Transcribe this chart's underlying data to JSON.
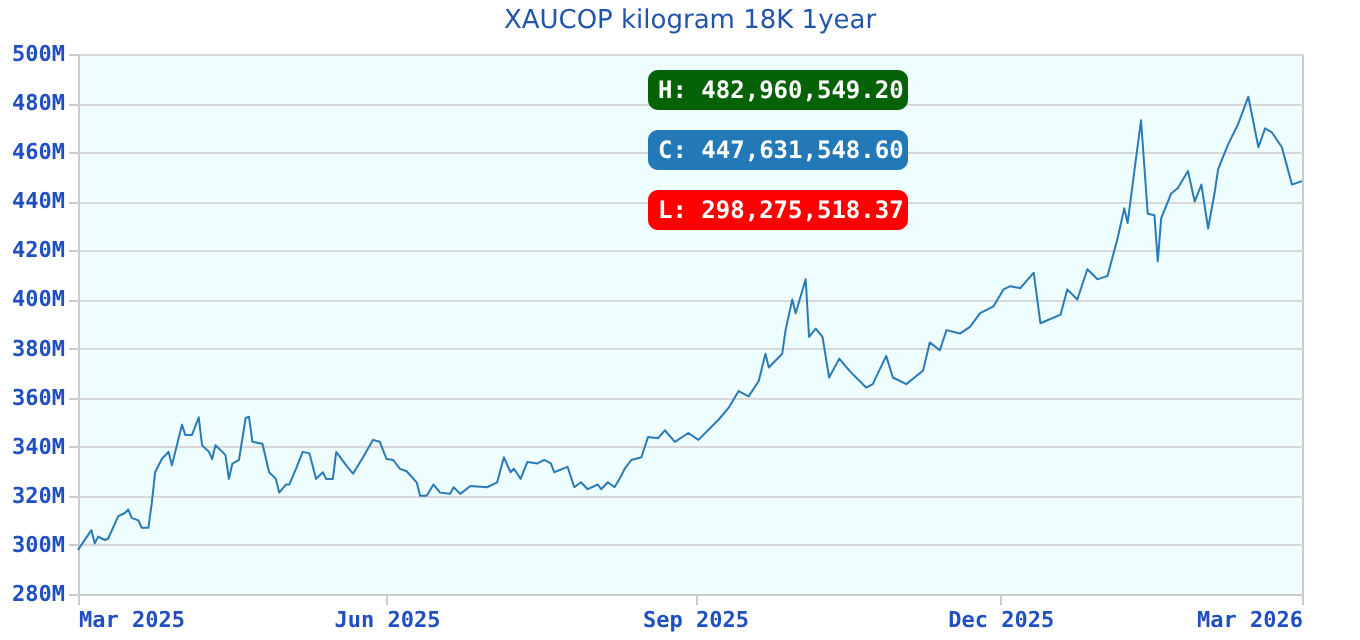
{
  "chart_data": {
    "type": "line",
    "title": "XAUCOP kilogram 18K 1year",
    "annotations": [
      "H: 482,960,549.20",
      "C: 447,631,548.60",
      "L: 298,275,518.37"
    ],
    "x": [
      "2025-03-01",
      "2025-03-05",
      "2025-03-06",
      "2025-03-07",
      "2025-03-09",
      "2025-03-10",
      "2025-03-13",
      "2025-03-15",
      "2025-03-16",
      "2025-03-17",
      "2025-03-19",
      "2025-03-20",
      "2025-03-22",
      "2025-03-23",
      "2025-03-24",
      "2025-03-26",
      "2025-03-28",
      "2025-03-29",
      "2025-04-01",
      "2025-04-02",
      "2025-04-04",
      "2025-04-06",
      "2025-04-07",
      "2025-04-09",
      "2025-04-10",
      "2025-04-11",
      "2025-04-13",
      "2025-04-14",
      "2025-04-15",
      "2025-04-16",
      "2025-04-18",
      "2025-04-20",
      "2025-04-21",
      "2025-04-22",
      "2025-04-25",
      "2025-04-27",
      "2025-04-29",
      "2025-04-30",
      "2025-05-02",
      "2025-05-03",
      "2025-05-05",
      "2025-05-07",
      "2025-05-09",
      "2025-05-11",
      "2025-05-13",
      "2025-05-14",
      "2025-05-16",
      "2025-05-17",
      "2025-05-20",
      "2025-05-22",
      "2025-05-25",
      "2025-05-28",
      "2025-05-30",
      "2025-06-01",
      "2025-06-03",
      "2025-06-05",
      "2025-06-07",
      "2025-06-10",
      "2025-06-11",
      "2025-06-13",
      "2025-06-15",
      "2025-06-17",
      "2025-06-20",
      "2025-06-21",
      "2025-06-23",
      "2025-06-26",
      "2025-07-01",
      "2025-07-04",
      "2025-07-06",
      "2025-07-08",
      "2025-07-09",
      "2025-07-11",
      "2025-07-13",
      "2025-07-16",
      "2025-07-18",
      "2025-07-20",
      "2025-07-21",
      "2025-07-25",
      "2025-07-27",
      "2025-07-29",
      "2025-07-31",
      "2025-08-03",
      "2025-08-04",
      "2025-08-06",
      "2025-08-08",
      "2025-08-10",
      "2025-08-11",
      "2025-08-13",
      "2025-08-16",
      "2025-08-18",
      "2025-08-21",
      "2025-08-23",
      "2025-08-26",
      "2025-08-30",
      "2025-09-02",
      "2025-09-08",
      "2025-09-11",
      "2025-09-14",
      "2025-09-17",
      "2025-09-20",
      "2025-09-22",
      "2025-09-23",
      "2025-09-27",
      "2025-09-28",
      "2025-09-30",
      "2025-10-01",
      "2025-10-04",
      "2025-10-05",
      "2025-10-07",
      "2025-10-09",
      "2025-10-11",
      "2025-10-14",
      "2025-10-17",
      "2025-10-22",
      "2025-10-24",
      "2025-10-28",
      "2025-10-30",
      "2025-11-03",
      "2025-11-06",
      "2025-11-08",
      "2025-11-10",
      "2025-11-13",
      "2025-11-15",
      "2025-11-19",
      "2025-11-22",
      "2025-11-25",
      "2025-11-29",
      "2025-12-02",
      "2025-12-04",
      "2025-12-07",
      "2025-12-11",
      "2025-12-13",
      "2025-12-19",
      "2025-12-21",
      "2025-12-24",
      "2025-12-27",
      "2025-12-30",
      "2026-01-02",
      "2026-01-05",
      "2026-01-07",
      "2026-01-08",
      "2026-01-10",
      "2026-01-12",
      "2026-01-14",
      "2026-01-16",
      "2026-01-17",
      "2026-01-18",
      "2026-01-21",
      "2026-01-23",
      "2026-01-26",
      "2026-01-28",
      "2026-01-30",
      "2026-02-01",
      "2026-02-03",
      "2026-02-04",
      "2026-02-07",
      "2026-02-10",
      "2026-02-13",
      "2026-02-16",
      "2026-02-18",
      "2026-02-20",
      "2026-02-23",
      "2026-02-26",
      "2026-03-01"
    ],
    "series": [
      {
        "color": "#2a7ab8",
        "values": [
          298,
          306,
          300.6,
          303.4,
          302,
          302.6,
          311.7,
          313,
          314.4,
          311,
          310,
          307,
          307,
          317,
          329.6,
          335,
          337.9,
          332.4,
          349,
          344.8,
          344.8,
          352,
          340.6,
          338,
          335,
          340.6,
          338,
          336.5,
          326.9,
          333,
          334.6,
          351.7,
          352.2,
          342,
          341.2,
          329.6,
          326.9,
          321.3,
          324.6,
          324.6,
          331,
          337.9,
          337.3,
          326.9,
          329.6,
          326.9,
          326.9,
          337.9,
          332.4,
          329,
          335.7,
          342.8,
          342,
          335,
          334.6,
          331,
          330,
          325.5,
          320,
          320,
          324.6,
          321.3,
          320.8,
          323.5,
          320.8,
          324,
          323.5,
          325.5,
          335.7,
          329.6,
          331,
          326.9,
          333.8,
          333.2,
          334.6,
          333.2,
          329.6,
          331.8,
          323.5,
          325.5,
          322.7,
          324.6,
          322.7,
          325.5,
          323.5,
          328.2,
          331,
          334.6,
          335.7,
          344,
          343.5,
          346.7,
          342,
          345.6,
          342.8,
          351,
          355.8,
          362.7,
          360.5,
          366.8,
          377.9,
          372.3,
          377.9,
          387.5,
          400,
          394.4,
          408.2,
          384.8,
          388.1,
          384.8,
          368.2,
          375.9,
          371,
          364.1,
          365.5,
          377,
          368.2,
          365.5,
          368.8,
          371,
          382.5,
          379.3,
          387.5,
          386.1,
          388.8,
          394.4,
          397.2,
          404.1,
          405.4,
          404.6,
          410.9,
          390.3,
          393.8,
          404.1,
          400,
          412.3,
          408.2,
          409.6,
          424.8,
          437.1,
          431.1,
          452.3,
          473,
          434.9,
          434.3,
          415.6,
          433,
          443.2,
          445.4,
          452.3,
          439.9,
          446.8,
          428.9,
          444,
          453.1,
          463.3,
          471.6,
          482.6,
          462,
          469.7,
          468.1,
          462,
          446.8,
          448.2
        ]
      }
    ],
    "xlim": [
      "2025-03-01",
      "2026-03-01"
    ],
    "xticks": [
      {
        "value": "2025-03-01",
        "label": "Mar 2025"
      },
      {
        "value": "2025-06-01",
        "label": "Jun 2025"
      },
      {
        "value": "2025-09-01",
        "label": "Sep 2025"
      },
      {
        "value": "2025-12-01",
        "label": "Dec 2025"
      },
      {
        "value": "2026-03-01",
        "label": "Mar 2026"
      }
    ],
    "ylim": [
      280,
      500
    ],
    "yticks": [
      {
        "value": 280,
        "label": "280M"
      },
      {
        "value": 300,
        "label": "300M"
      },
      {
        "value": 320,
        "label": "320M"
      },
      {
        "value": 340,
        "label": "340M"
      },
      {
        "value": 360,
        "label": "360M"
      },
      {
        "value": 380,
        "label": "380M"
      },
      {
        "value": 400,
        "label": "400M"
      },
      {
        "value": 420,
        "label": "420M"
      },
      {
        "value": 440,
        "label": "440M"
      },
      {
        "value": 460,
        "label": "460M"
      },
      {
        "value": 480,
        "label": "480M"
      },
      {
        "value": 500,
        "label": "500M"
      }
    ],
    "grid": "y",
    "marker": "none",
    "line_style": "solid",
    "legend": false
  }
}
